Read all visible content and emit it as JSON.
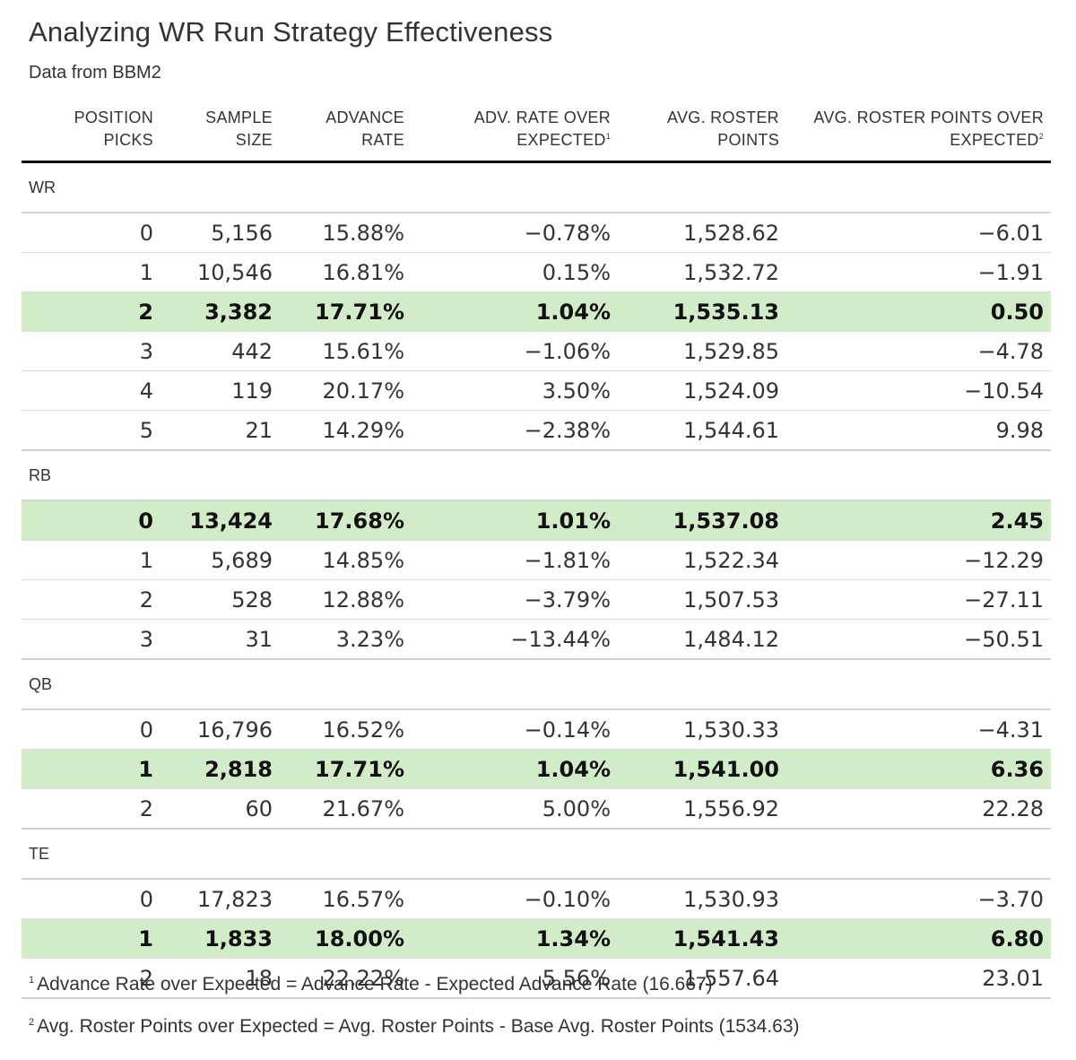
{
  "title": "Analyzing WR Run Strategy Effectiveness",
  "subtitle": "Data from BBM2",
  "headers": {
    "position_picks": [
      "POSITION",
      "PICKS"
    ],
    "sample_size": [
      "SAMPLE",
      "SIZE"
    ],
    "advance_rate": [
      "ADVANCE",
      "RATE"
    ],
    "adv_rate_over_expected": [
      "ADV. RATE OVER",
      "EXPECTED"
    ],
    "adv_rate_over_expected_note": "1",
    "avg_roster_points": [
      "AVG. ROSTER",
      "POINTS"
    ],
    "avg_roster_points_over_expected": [
      "AVG. ROSTER POINTS OVER",
      "EXPECTED"
    ],
    "avg_roster_points_over_expected_note": "2"
  },
  "groups": [
    {
      "label": "WR",
      "rows": [
        {
          "picks": "0",
          "sample": "5,156",
          "rate": "15.88%",
          "rate_oe": "−0.78%",
          "points": "1,528.62",
          "points_oe": "−6.01",
          "highlight": false
        },
        {
          "picks": "1",
          "sample": "10,546",
          "rate": "16.81%",
          "rate_oe": "0.15%",
          "points": "1,532.72",
          "points_oe": "−1.91",
          "highlight": false
        },
        {
          "picks": "2",
          "sample": "3,382",
          "rate": "17.71%",
          "rate_oe": "1.04%",
          "points": "1,535.13",
          "points_oe": "0.50",
          "highlight": true
        },
        {
          "picks": "3",
          "sample": "442",
          "rate": "15.61%",
          "rate_oe": "−1.06%",
          "points": "1,529.85",
          "points_oe": "−4.78",
          "highlight": false
        },
        {
          "picks": "4",
          "sample": "119",
          "rate": "20.17%",
          "rate_oe": "3.50%",
          "points": "1,524.09",
          "points_oe": "−10.54",
          "highlight": false
        },
        {
          "picks": "5",
          "sample": "21",
          "rate": "14.29%",
          "rate_oe": "−2.38%",
          "points": "1,544.61",
          "points_oe": "9.98",
          "highlight": false
        }
      ]
    },
    {
      "label": "RB",
      "rows": [
        {
          "picks": "0",
          "sample": "13,424",
          "rate": "17.68%",
          "rate_oe": "1.01%",
          "points": "1,537.08",
          "points_oe": "2.45",
          "highlight": true
        },
        {
          "picks": "1",
          "sample": "5,689",
          "rate": "14.85%",
          "rate_oe": "−1.81%",
          "points": "1,522.34",
          "points_oe": "−12.29",
          "highlight": false
        },
        {
          "picks": "2",
          "sample": "528",
          "rate": "12.88%",
          "rate_oe": "−3.79%",
          "points": "1,507.53",
          "points_oe": "−27.11",
          "highlight": false
        },
        {
          "picks": "3",
          "sample": "31",
          "rate": "3.23%",
          "rate_oe": "−13.44%",
          "points": "1,484.12",
          "points_oe": "−50.51",
          "highlight": false
        }
      ]
    },
    {
      "label": "QB",
      "rows": [
        {
          "picks": "0",
          "sample": "16,796",
          "rate": "16.52%",
          "rate_oe": "−0.14%",
          "points": "1,530.33",
          "points_oe": "−4.31",
          "highlight": false
        },
        {
          "picks": "1",
          "sample": "2,818",
          "rate": "17.71%",
          "rate_oe": "1.04%",
          "points": "1,541.00",
          "points_oe": "6.36",
          "highlight": true
        },
        {
          "picks": "2",
          "sample": "60",
          "rate": "21.67%",
          "rate_oe": "5.00%",
          "points": "1,556.92",
          "points_oe": "22.28",
          "highlight": false
        }
      ]
    },
    {
      "label": "TE",
      "rows": [
        {
          "picks": "0",
          "sample": "17,823",
          "rate": "16.57%",
          "rate_oe": "−0.10%",
          "points": "1,530.93",
          "points_oe": "−3.70",
          "highlight": false
        },
        {
          "picks": "1",
          "sample": "1,833",
          "rate": "18.00%",
          "rate_oe": "1.34%",
          "points": "1,541.43",
          "points_oe": "6.80",
          "highlight": true
        },
        {
          "picks": "2",
          "sample": "18",
          "rate": "22.22%",
          "rate_oe": "5.56%",
          "points": "1,557.64",
          "points_oe": "23.01",
          "highlight": false
        }
      ]
    }
  ],
  "footnotes": [
    {
      "mark": "1",
      "text": "Advance Rate over Expected = Advance Rate - Expected Advance Rate (16.667)"
    },
    {
      "mark": "2",
      "text": "Avg. Roster Points over Expected = Avg. Roster Points - Base Avg. Roster Points (1534.63)"
    }
  ],
  "colors": {
    "highlight_row": "#d2ecca",
    "header_rule": "#111111",
    "text": "#333333"
  }
}
